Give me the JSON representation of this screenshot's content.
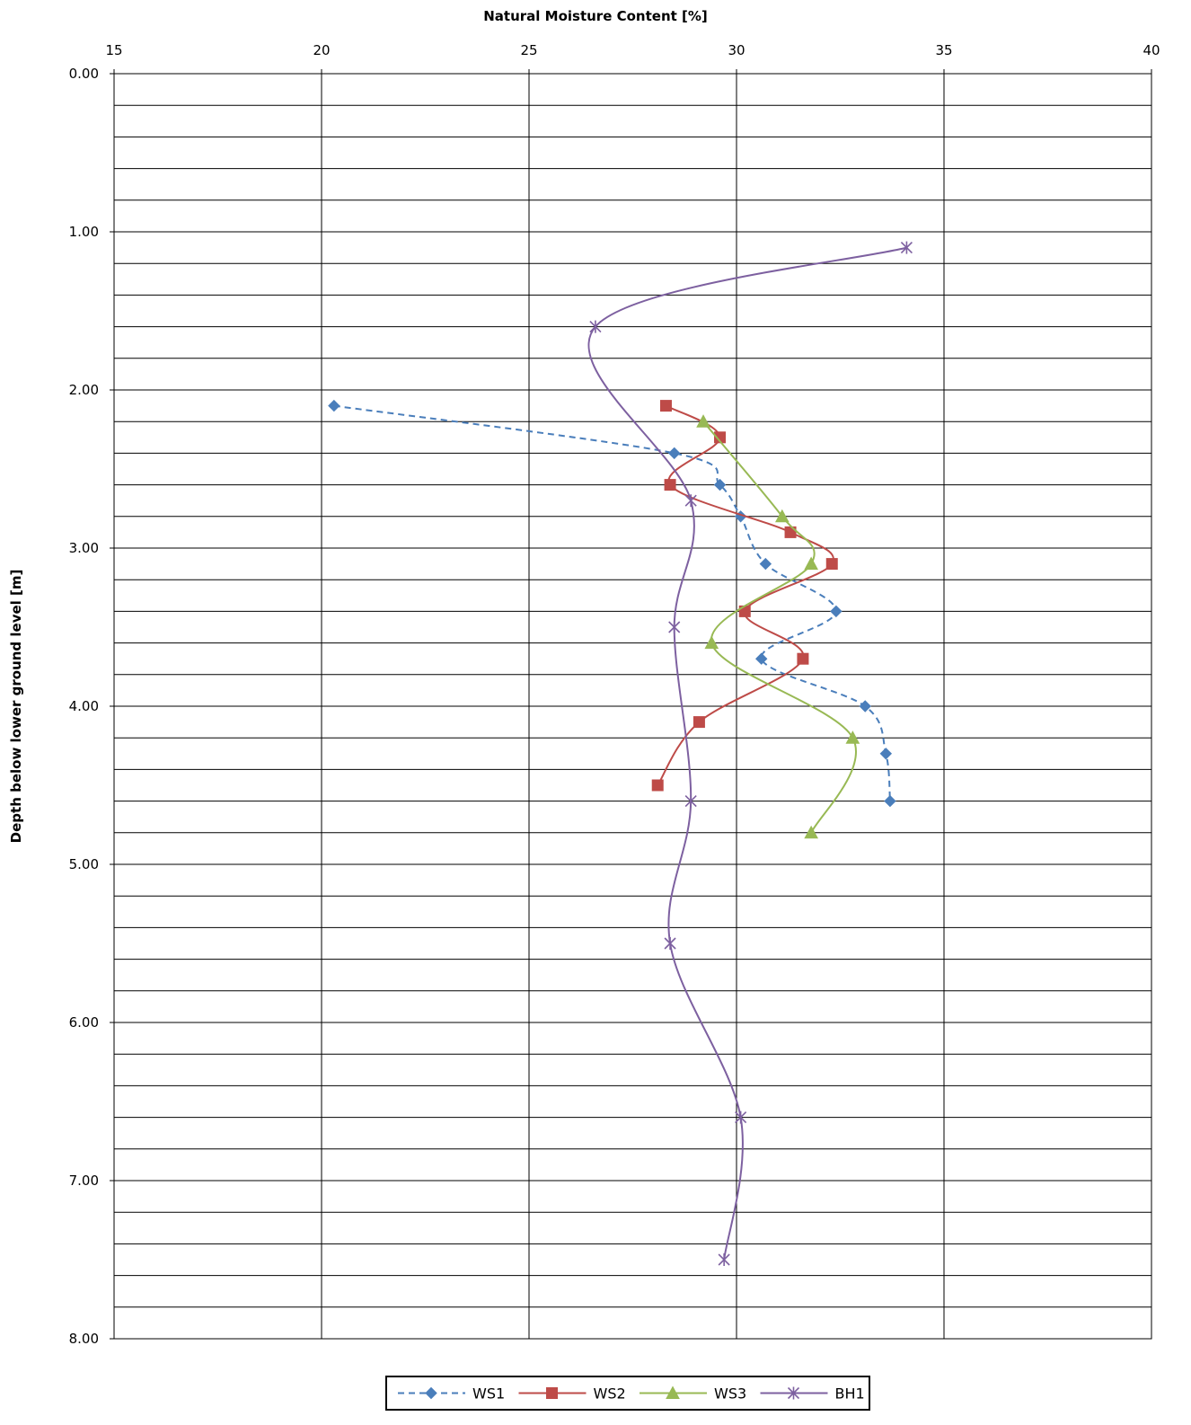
{
  "chart_data": {
    "type": "line",
    "xlabel": "Natural Moisture Content [%]",
    "ylabel": "Depth below lower ground level [m]",
    "xlim": [
      15,
      40
    ],
    "ylim": [
      0,
      8
    ],
    "y_inverted": true,
    "x_axis_position": "top",
    "x_ticks": [
      "15",
      "20",
      "25",
      "30",
      "35",
      "40"
    ],
    "y_ticks": [
      "0.00",
      "1.00",
      "2.00",
      "3.00",
      "4.00",
      "5.00",
      "6.00",
      "7.00",
      "8.00"
    ],
    "grid": true,
    "legend_position": "bottom-center",
    "series": [
      {
        "name": "WS1",
        "color": "#4a7ebb",
        "dash": "dashed",
        "marker": "diamond",
        "smooth": true,
        "points": [
          [
            20.3,
            2.1
          ],
          [
            28.5,
            2.4
          ],
          [
            29.6,
            2.6
          ],
          [
            30.1,
            2.8
          ],
          [
            30.7,
            3.1
          ],
          [
            32.4,
            3.4
          ],
          [
            30.6,
            3.7
          ],
          [
            33.1,
            4.0
          ],
          [
            33.6,
            4.3
          ],
          [
            33.7,
            4.6
          ]
        ]
      },
      {
        "name": "WS2",
        "color": "#be4b48",
        "dash": "solid",
        "marker": "square",
        "smooth": true,
        "points": [
          [
            28.3,
            2.1
          ],
          [
            29.6,
            2.3
          ],
          [
            28.4,
            2.6
          ],
          [
            31.3,
            2.9
          ],
          [
            32.3,
            3.1
          ],
          [
            30.2,
            3.4
          ],
          [
            31.6,
            3.7
          ],
          [
            29.1,
            4.1
          ],
          [
            28.1,
            4.5
          ]
        ]
      },
      {
        "name": "WS3",
        "color": "#98b954",
        "dash": "solid",
        "marker": "triangle",
        "smooth": true,
        "points": [
          [
            29.2,
            2.2
          ],
          [
            31.1,
            2.8
          ],
          [
            31.8,
            3.1
          ],
          [
            29.4,
            3.6
          ],
          [
            32.8,
            4.2
          ],
          [
            31.8,
            4.8
          ]
        ]
      },
      {
        "name": "BH1",
        "color": "#7d60a0",
        "dash": "solid",
        "marker": "star",
        "smooth": true,
        "points": [
          [
            34.1,
            1.1
          ],
          [
            26.6,
            1.6
          ],
          [
            28.9,
            2.7
          ],
          [
            28.5,
            3.5
          ],
          [
            28.9,
            4.6
          ],
          [
            28.4,
            5.5
          ],
          [
            30.1,
            6.6
          ],
          [
            29.7,
            7.5
          ]
        ]
      }
    ]
  }
}
